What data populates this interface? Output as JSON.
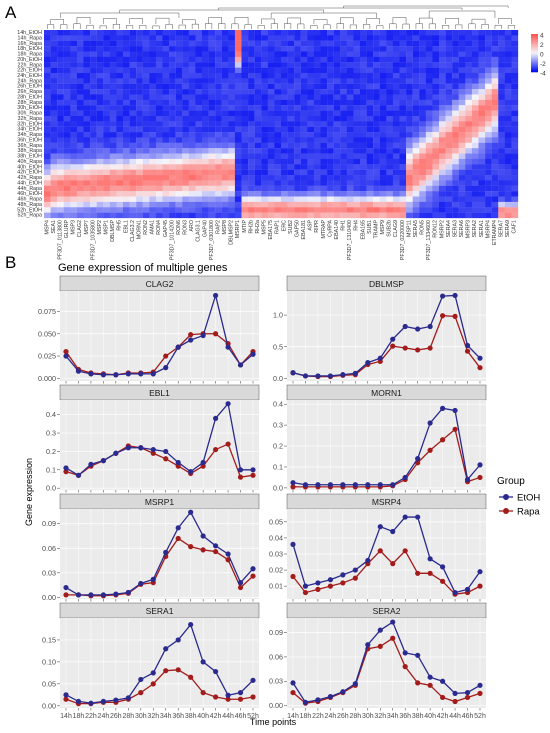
{
  "panel_labels": {
    "a": "A",
    "b": "B"
  },
  "heatmap": {
    "rows": [
      "14h_EtOH",
      "14h_Rapa",
      "16h_Rapa",
      "18h_EtOH",
      "18h_Rapa",
      "20h_EtOH",
      "22h_Rapa",
      "22h_EtOH",
      "24h_EtOH",
      "24h_Rapa",
      "26h_EtOH",
      "26h_Rapa",
      "28h_EtOH",
      "28h_Rapa",
      "30h_EtOH",
      "30h_Rapa",
      "32h_Rapa",
      "32h_EtOH",
      "34h_EtOH",
      "34h_Rapa",
      "36h_EtOH",
      "36h_Rapa",
      "38h_Rapa",
      "38h_EtOH",
      "40h_Rapa",
      "40h_EtOH",
      "42h_EtOH",
      "42h_Rapa",
      "44h_EtOH",
      "44h_Rapa",
      "46h_EtOH",
      "46h_Rapa",
      "48h_Rapa",
      "52h_EtOH",
      "52h_Rapa"
    ],
    "cols": [
      "MSP4",
      "SEA1",
      "PF3D7_0113800",
      "GLURP",
      "MSP3",
      "CLAG2",
      "MSP7",
      "PF3D7_1035800",
      "MSP2",
      "MSP1",
      "DBLMSP",
      "RH5",
      "EBL1",
      "CLAG3.2",
      "MORN1",
      "RON2",
      "AMA1",
      "RON4",
      "GAP45",
      "PF3D7_1014200",
      "RON6",
      "RON3",
      "ARO",
      "CLAG3.1",
      "GAP40",
      "PF3D7_0301800",
      "RAP2",
      "MSP8",
      "DBLMSP2",
      "MSRP1",
      "MTIP",
      "RH2b",
      "RH2a",
      "MSP5",
      "EBA175",
      "RAP1",
      "ERC",
      "SUB2",
      "GAP50",
      "EBA181",
      "ASP",
      "RIPR",
      "MTRAP",
      "CyRPA",
      "EBA140",
      "RH1",
      "PF3D7_1310400",
      "RH4",
      "EBA165",
      "SUB1",
      "TRAMP",
      "MSP9",
      "SUB2b",
      "CLAG9",
      "PF3D7_0220000",
      "MSP11",
      "SERA5",
      "RON5",
      "PF3D7_1334600",
      "RON12",
      "MSRP2",
      "SERA4",
      "SERA3",
      "SERA6",
      "MSRP3",
      "SERA2",
      "SERA1",
      "MSRP4",
      "ETRAMP4",
      "SERA7",
      "SERA9",
      "CAF1"
    ],
    "legend": [
      "4",
      "2",
      "0",
      "-2",
      "-4"
    ]
  },
  "panel_b": {
    "title": "Gene expression of multiple genes",
    "xlabel": "Time points",
    "ylabel": "Gene expression",
    "legend_title": "Group",
    "colors": {
      "EtOH": "#2a2a8f",
      "Rapa": "#a31c1c",
      "strip": "#d9d9d9",
      "panel": "#ebebeb",
      "grid": "#ffffff"
    }
  },
  "chart_data": {
    "type": "line",
    "x": [
      "14h",
      "18h",
      "22h",
      "24h",
      "26h",
      "28h",
      "30h",
      "32h",
      "34h",
      "36h",
      "38h",
      "40h",
      "42h",
      "44h",
      "46h",
      "52h"
    ],
    "panels": [
      {
        "gene": "CLAG2",
        "yticks": [
          "0.000",
          "0.025",
          "0.050",
          "0.075"
        ],
        "ylim": [
          -0.003,
          0.098
        ],
        "series": [
          {
            "name": "EtOH",
            "values": [
              0.025,
              0.008,
              0.005,
              0.004,
              0.004,
              0.005,
              0.005,
              0.005,
              0.012,
              0.035,
              0.043,
              0.048,
              0.093,
              0.035,
              0.015,
              0.027
            ]
          },
          {
            "name": "Rapa",
            "values": [
              0.03,
              0.01,
              0.006,
              0.005,
              0.004,
              0.006,
              0.006,
              0.007,
              0.025,
              0.035,
              0.049,
              0.05,
              0.05,
              0.039,
              0.015,
              0.03
            ]
          }
        ]
      },
      {
        "gene": "DBLMSP",
        "yticks": [
          "0.0",
          "0.5",
          "1.0"
        ],
        "ylim": [
          -0.04,
          1.38
        ],
        "series": [
          {
            "name": "EtOH",
            "values": [
              0.09,
              0.04,
              0.04,
              0.04,
              0.06,
              0.08,
              0.25,
              0.32,
              0.62,
              0.82,
              0.78,
              0.82,
              1.3,
              1.31,
              0.52,
              0.32
            ]
          },
          {
            "name": "Rapa",
            "values": [
              0.09,
              0.04,
              0.03,
              0.03,
              0.05,
              0.06,
              0.22,
              0.27,
              0.51,
              0.48,
              0.45,
              0.48,
              0.99,
              0.98,
              0.43,
              0.17
            ]
          }
        ]
      },
      {
        "gene": "EBL1",
        "yticks": [
          "0.0",
          "0.1",
          "0.2",
          "0.3",
          "0.4"
        ],
        "ylim": [
          -0.01,
          0.48
        ],
        "series": [
          {
            "name": "EtOH",
            "values": [
              0.11,
              0.07,
              0.13,
              0.15,
              0.19,
              0.22,
              0.22,
              0.21,
              0.2,
              0.14,
              0.09,
              0.14,
              0.38,
              0.46,
              0.1,
              0.1
            ]
          },
          {
            "name": "Rapa",
            "values": [
              0.09,
              0.07,
              0.12,
              0.15,
              0.19,
              0.23,
              0.22,
              0.19,
              0.16,
              0.12,
              0.08,
              0.12,
              0.21,
              0.24,
              0.06,
              0.07
            ]
          }
        ]
      },
      {
        "gene": "MORN1",
        "yticks": [
          "0.0",
          "0.1",
          "0.2",
          "0.3",
          "0.4"
        ],
        "ylim": [
          -0.01,
          0.42
        ],
        "series": [
          {
            "name": "EtOH",
            "values": [
              0.025,
              0.015,
              0.015,
              0.015,
              0.015,
              0.015,
              0.015,
              0.015,
              0.015,
              0.05,
              0.14,
              0.31,
              0.38,
              0.37,
              0.04,
              0.11
            ]
          },
          {
            "name": "Rapa",
            "values": [
              0.005,
              0.005,
              0.005,
              0.005,
              0.005,
              0.005,
              0.005,
              0.005,
              0.01,
              0.04,
              0.12,
              0.18,
              0.23,
              0.28,
              0.03,
              0.05
            ]
          }
        ]
      },
      {
        "gene": "MSRP1",
        "yticks": [
          "0.00",
          "0.03",
          "0.06",
          "0.09"
        ],
        "ylim": [
          -0.002,
          0.108
        ],
        "series": [
          {
            "name": "EtOH",
            "values": [
              0.012,
              0.003,
              0.003,
              0.003,
              0.004,
              0.006,
              0.017,
              0.022,
              0.055,
              0.085,
              0.104,
              0.075,
              0.063,
              0.053,
              0.018,
              0.035
            ]
          },
          {
            "name": "Rapa",
            "values": [
              0.003,
              0.003,
              0.002,
              0.002,
              0.003,
              0.005,
              0.016,
              0.018,
              0.05,
              0.072,
              0.062,
              0.058,
              0.056,
              0.046,
              0.012,
              0.026
            ]
          }
        ]
      },
      {
        "gene": "MSRP4",
        "yticks": [
          "0.01",
          "0.02",
          "0.03",
          "0.04",
          "0.05"
        ],
        "ylim": [
          0.002,
          0.058
        ],
        "series": [
          {
            "name": "EtOH",
            "values": [
              0.036,
              0.01,
              0.012,
              0.014,
              0.017,
              0.02,
              0.026,
              0.047,
              0.044,
              0.053,
              0.053,
              0.027,
              0.022,
              0.006,
              0.008,
              0.019
            ]
          },
          {
            "name": "Rapa",
            "values": [
              0.016,
              0.006,
              0.008,
              0.01,
              0.012,
              0.015,
              0.024,
              0.032,
              0.024,
              0.032,
              0.018,
              0.018,
              0.013,
              0.005,
              0.006,
              0.01
            ]
          }
        ]
      },
      {
        "gene": "SERA1",
        "yticks": [
          "0.00",
          "0.05",
          "0.10",
          "0.15"
        ],
        "ylim": [
          -0.005,
          0.2
        ],
        "series": [
          {
            "name": "EtOH",
            "values": [
              0.025,
              0.01,
              0.006,
              0.01,
              0.013,
              0.018,
              0.06,
              0.075,
              0.13,
              0.15,
              0.185,
              0.1,
              0.078,
              0.024,
              0.03,
              0.058
            ]
          },
          {
            "name": "Rapa",
            "values": [
              0.015,
              0.005,
              0.005,
              0.008,
              0.008,
              0.015,
              0.03,
              0.05,
              0.08,
              0.082,
              0.065,
              0.03,
              0.02,
              0.015,
              0.015,
              0.02
            ]
          }
        ]
      },
      {
        "gene": "SERA2",
        "yticks": [
          "0.00",
          "0.03",
          "0.06",
          "0.09"
        ],
        "ylim": [
          -0.003,
          0.108
        ],
        "series": [
          {
            "name": "EtOH",
            "values": [
              0.028,
              0.004,
              0.007,
              0.011,
              0.017,
              0.027,
              0.075,
              0.093,
              0.103,
              0.065,
              0.062,
              0.035,
              0.03,
              0.015,
              0.016,
              0.025
            ]
          },
          {
            "name": "Rapa",
            "values": [
              0.016,
              0.003,
              0.005,
              0.01,
              0.016,
              0.025,
              0.07,
              0.073,
              0.083,
              0.048,
              0.028,
              0.025,
              0.01,
              0.005,
              0.01,
              0.015
            ]
          }
        ]
      }
    ]
  }
}
